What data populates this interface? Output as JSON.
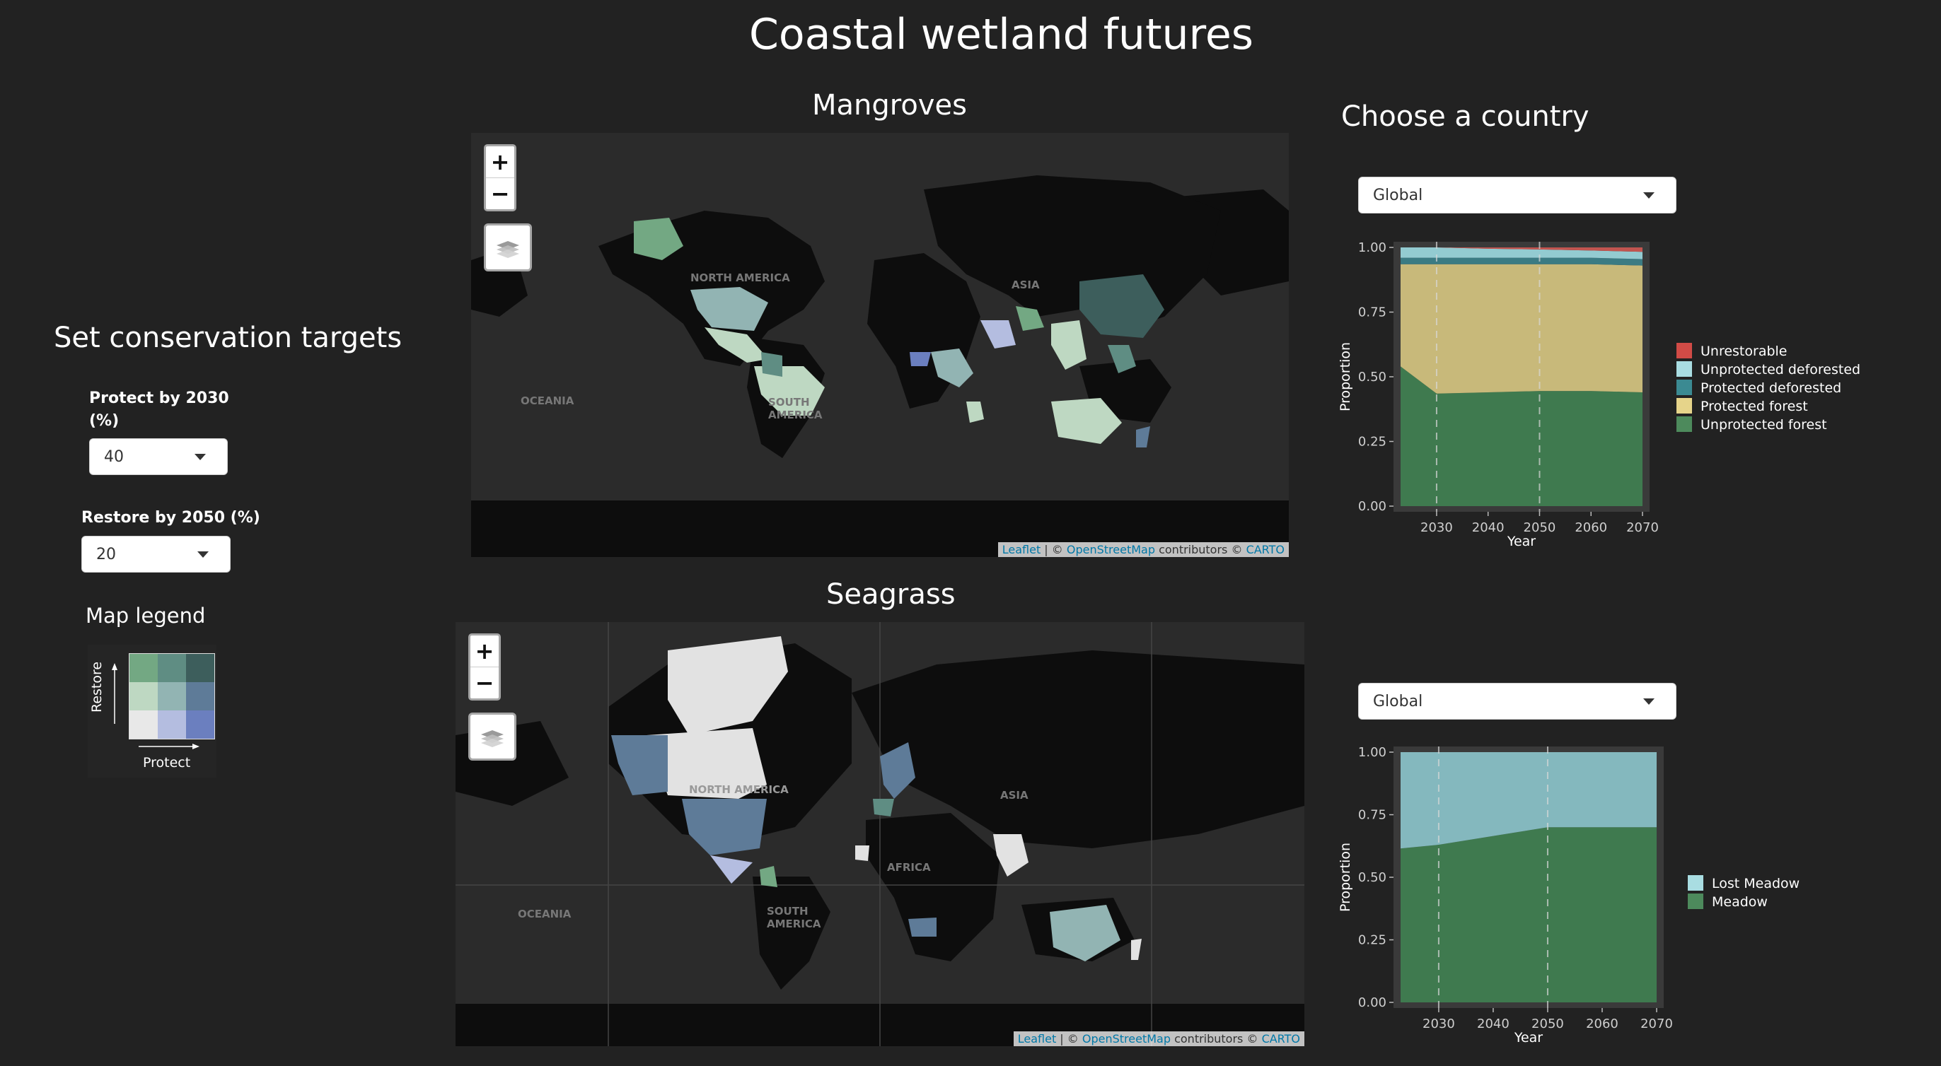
{
  "page": {
    "title": "Coastal wetland futures"
  },
  "sidebar": {
    "heading": "Set conservation targets",
    "protect": {
      "label": "Protect by 2030 (%)",
      "value": "40"
    },
    "restore": {
      "label": "Restore by 2050 (%)",
      "value": "20"
    },
    "legend": {
      "heading": "Map legend",
      "y_label": "Restore",
      "x_label": "Protect",
      "colors": [
        [
          "#73a883",
          "#5f8d83",
          "#3d5e5c"
        ],
        [
          "#bed8c2",
          "#92b4b3",
          "#5e7b98"
        ],
        [
          "#e8e8e8",
          "#b4bde0",
          "#6b7fbf"
        ]
      ]
    }
  },
  "maps": {
    "mangroves": {
      "title": "Mangroves"
    },
    "seagrass": {
      "title": "Seagrass"
    },
    "zoom_in": "+",
    "zoom_out": "−",
    "labels": [
      "NORTH AMERICA",
      "ASIA",
      "OCEANIA",
      "SOUTH AMERICA",
      "AFRICA"
    ],
    "attribution": {
      "leaflet": "Leaflet",
      "sep1": " | © ",
      "osm": "OpenStreetMap",
      "mid": " contributors © ",
      "carto": "CARTO"
    }
  },
  "country": {
    "heading": "Choose a country",
    "mangrove_select": "Global",
    "seagrass_select": "Global"
  },
  "chart_data": [
    {
      "type": "area",
      "stacked": true,
      "x": [
        2023,
        2030,
        2040,
        2050,
        2060,
        2070
      ],
      "xticks": [
        2030,
        2040,
        2050,
        2060,
        2070
      ],
      "yticks": [
        "0.00",
        "0.25",
        "0.50",
        "0.75",
        "1.00"
      ],
      "ylim": [
        0,
        1
      ],
      "xlabel": "Year",
      "ylabel": "Proportion",
      "vlines": [
        2030,
        2050
      ],
      "series": [
        {
          "name": "Unprotected forest",
          "color": "#3f7a4f",
          "values": [
            0.54,
            0.435,
            0.44,
            0.445,
            0.445,
            0.44
          ]
        },
        {
          "name": "Protected forest",
          "color": "#c8b97a",
          "values": [
            0.395,
            0.5,
            0.495,
            0.49,
            0.49,
            0.49
          ]
        },
        {
          "name": "Protected deforested",
          "color": "#3b7b83",
          "values": [
            0.025,
            0.025,
            0.025,
            0.025,
            0.025,
            0.025
          ]
        },
        {
          "name": "Unprotected deforested",
          "color": "#93cbd1",
          "values": [
            0.04,
            0.04,
            0.035,
            0.032,
            0.028,
            0.028
          ]
        },
        {
          "name": "Unrestorable",
          "color": "#c25550",
          "values": [
            0.0,
            0.0,
            0.005,
            0.008,
            0.012,
            0.017
          ]
        }
      ],
      "legend_order": [
        "Unrestorable",
        "Unprotected deforested",
        "Protected deforested",
        "Protected forest",
        "Unprotected forest"
      ],
      "legend_colors": [
        "#d14b46",
        "#a9dde2",
        "#3b8a92",
        "#e6d48a",
        "#4d8a5c"
      ]
    },
    {
      "type": "area",
      "stacked": true,
      "x": [
        2023,
        2030,
        2040,
        2050,
        2060,
        2070
      ],
      "xticks": [
        2030,
        2040,
        2050,
        2060,
        2070
      ],
      "yticks": [
        "0.00",
        "0.25",
        "0.50",
        "0.75",
        "1.00"
      ],
      "ylim": [
        0,
        1
      ],
      "xlabel": "Year",
      "ylabel": "Proportion",
      "vlines": [
        2030,
        2050
      ],
      "series": [
        {
          "name": "Meadow",
          "color": "#3f7a4f",
          "values": [
            0.615,
            0.63,
            0.665,
            0.7,
            0.7,
            0.7
          ]
        },
        {
          "name": "Lost Meadow",
          "color": "#84b8be",
          "values": [
            0.385,
            0.37,
            0.335,
            0.3,
            0.3,
            0.3
          ]
        }
      ],
      "legend_order": [
        "Lost Meadow",
        "Meadow"
      ],
      "legend_colors": [
        "#a9dde2",
        "#4d8a5c"
      ]
    }
  ]
}
